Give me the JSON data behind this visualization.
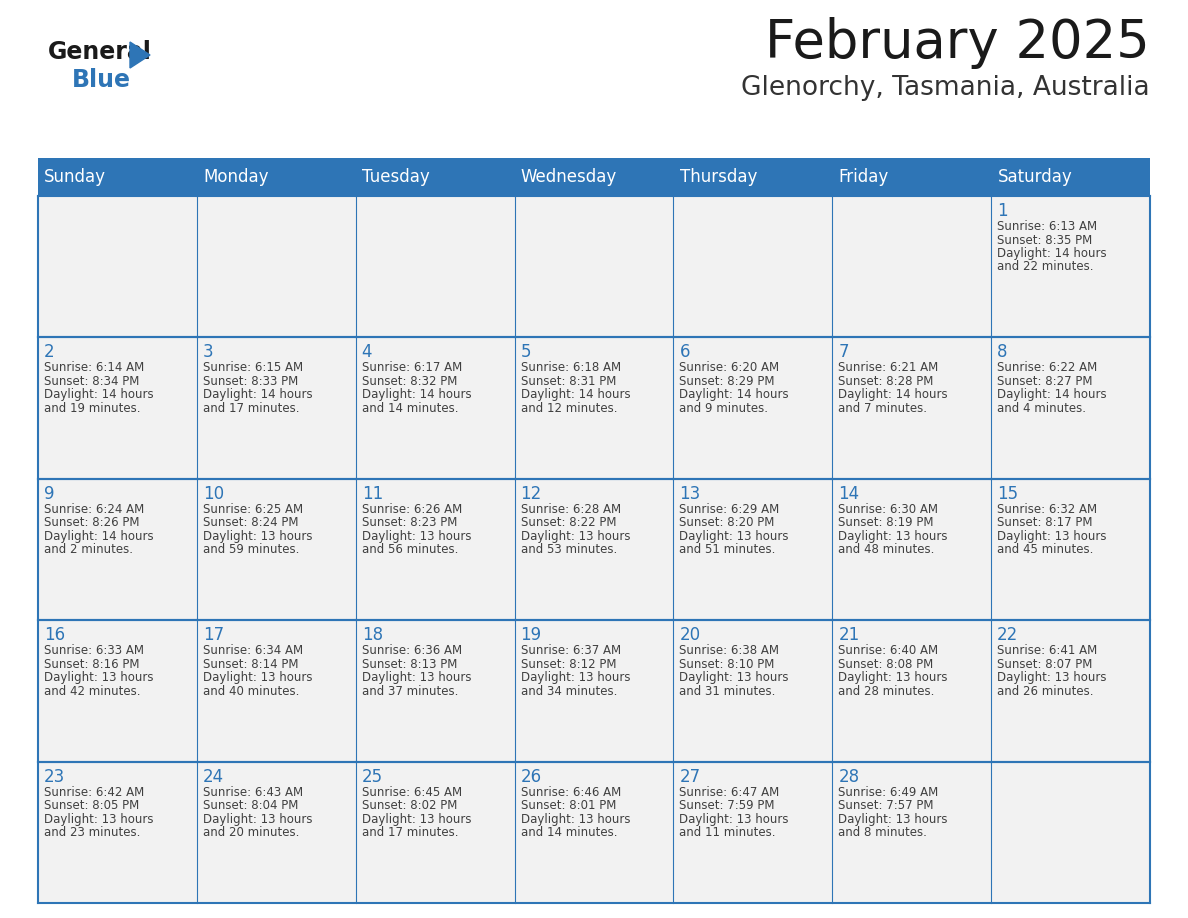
{
  "title": "February 2025",
  "subtitle": "Glenorchy, Tasmania, Australia",
  "header_bg": "#2E75B6",
  "header_text_color": "#FFFFFF",
  "cell_bg": "#F2F2F2",
  "day_number_color": "#2E75B6",
  "text_color": "#404040",
  "border_color": "#2E75B6",
  "days_of_week": [
    "Sunday",
    "Monday",
    "Tuesday",
    "Wednesday",
    "Thursday",
    "Friday",
    "Saturday"
  ],
  "calendar_data": [
    [
      null,
      null,
      null,
      null,
      null,
      null,
      {
        "day": "1",
        "sunrise": "6:13 AM",
        "sunset": "8:35 PM",
        "daylight1": "Daylight: 14 hours",
        "daylight2": "and 22 minutes."
      }
    ],
    [
      {
        "day": "2",
        "sunrise": "6:14 AM",
        "sunset": "8:34 PM",
        "daylight1": "Daylight: 14 hours",
        "daylight2": "and 19 minutes."
      },
      {
        "day": "3",
        "sunrise": "6:15 AM",
        "sunset": "8:33 PM",
        "daylight1": "Daylight: 14 hours",
        "daylight2": "and 17 minutes."
      },
      {
        "day": "4",
        "sunrise": "6:17 AM",
        "sunset": "8:32 PM",
        "daylight1": "Daylight: 14 hours",
        "daylight2": "and 14 minutes."
      },
      {
        "day": "5",
        "sunrise": "6:18 AM",
        "sunset": "8:31 PM",
        "daylight1": "Daylight: 14 hours",
        "daylight2": "and 12 minutes."
      },
      {
        "day": "6",
        "sunrise": "6:20 AM",
        "sunset": "8:29 PM",
        "daylight1": "Daylight: 14 hours",
        "daylight2": "and 9 minutes."
      },
      {
        "day": "7",
        "sunrise": "6:21 AM",
        "sunset": "8:28 PM",
        "daylight1": "Daylight: 14 hours",
        "daylight2": "and 7 minutes."
      },
      {
        "day": "8",
        "sunrise": "6:22 AM",
        "sunset": "8:27 PM",
        "daylight1": "Daylight: 14 hours",
        "daylight2": "and 4 minutes."
      }
    ],
    [
      {
        "day": "9",
        "sunrise": "6:24 AM",
        "sunset": "8:26 PM",
        "daylight1": "Daylight: 14 hours",
        "daylight2": "and 2 minutes."
      },
      {
        "day": "10",
        "sunrise": "6:25 AM",
        "sunset": "8:24 PM",
        "daylight1": "Daylight: 13 hours",
        "daylight2": "and 59 minutes."
      },
      {
        "day": "11",
        "sunrise": "6:26 AM",
        "sunset": "8:23 PM",
        "daylight1": "Daylight: 13 hours",
        "daylight2": "and 56 minutes."
      },
      {
        "day": "12",
        "sunrise": "6:28 AM",
        "sunset": "8:22 PM",
        "daylight1": "Daylight: 13 hours",
        "daylight2": "and 53 minutes."
      },
      {
        "day": "13",
        "sunrise": "6:29 AM",
        "sunset": "8:20 PM",
        "daylight1": "Daylight: 13 hours",
        "daylight2": "and 51 minutes."
      },
      {
        "day": "14",
        "sunrise": "6:30 AM",
        "sunset": "8:19 PM",
        "daylight1": "Daylight: 13 hours",
        "daylight2": "and 48 minutes."
      },
      {
        "day": "15",
        "sunrise": "6:32 AM",
        "sunset": "8:17 PM",
        "daylight1": "Daylight: 13 hours",
        "daylight2": "and 45 minutes."
      }
    ],
    [
      {
        "day": "16",
        "sunrise": "6:33 AM",
        "sunset": "8:16 PM",
        "daylight1": "Daylight: 13 hours",
        "daylight2": "and 42 minutes."
      },
      {
        "day": "17",
        "sunrise": "6:34 AM",
        "sunset": "8:14 PM",
        "daylight1": "Daylight: 13 hours",
        "daylight2": "and 40 minutes."
      },
      {
        "day": "18",
        "sunrise": "6:36 AM",
        "sunset": "8:13 PM",
        "daylight1": "Daylight: 13 hours",
        "daylight2": "and 37 minutes."
      },
      {
        "day": "19",
        "sunrise": "6:37 AM",
        "sunset": "8:12 PM",
        "daylight1": "Daylight: 13 hours",
        "daylight2": "and 34 minutes."
      },
      {
        "day": "20",
        "sunrise": "6:38 AM",
        "sunset": "8:10 PM",
        "daylight1": "Daylight: 13 hours",
        "daylight2": "and 31 minutes."
      },
      {
        "day": "21",
        "sunrise": "6:40 AM",
        "sunset": "8:08 PM",
        "daylight1": "Daylight: 13 hours",
        "daylight2": "and 28 minutes."
      },
      {
        "day": "22",
        "sunrise": "6:41 AM",
        "sunset": "8:07 PM",
        "daylight1": "Daylight: 13 hours",
        "daylight2": "and 26 minutes."
      }
    ],
    [
      {
        "day": "23",
        "sunrise": "6:42 AM",
        "sunset": "8:05 PM",
        "daylight1": "Daylight: 13 hours",
        "daylight2": "and 23 minutes."
      },
      {
        "day": "24",
        "sunrise": "6:43 AM",
        "sunset": "8:04 PM",
        "daylight1": "Daylight: 13 hours",
        "daylight2": "and 20 minutes."
      },
      {
        "day": "25",
        "sunrise": "6:45 AM",
        "sunset": "8:02 PM",
        "daylight1": "Daylight: 13 hours",
        "daylight2": "and 17 minutes."
      },
      {
        "day": "26",
        "sunrise": "6:46 AM",
        "sunset": "8:01 PM",
        "daylight1": "Daylight: 13 hours",
        "daylight2": "and 14 minutes."
      },
      {
        "day": "27",
        "sunrise": "6:47 AM",
        "sunset": "7:59 PM",
        "daylight1": "Daylight: 13 hours",
        "daylight2": "and 11 minutes."
      },
      {
        "day": "28",
        "sunrise": "6:49 AM",
        "sunset": "7:57 PM",
        "daylight1": "Daylight: 13 hours",
        "daylight2": "and 8 minutes."
      },
      null
    ]
  ]
}
